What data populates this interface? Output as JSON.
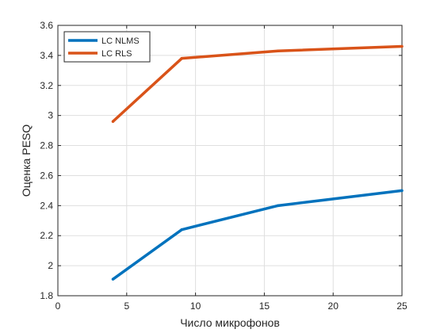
{
  "chart_data": {
    "type": "line",
    "xlabel": "Число микрофонов",
    "ylabel": "Оценка PESQ",
    "xlim": [
      0,
      25
    ],
    "ylim": [
      1.8,
      3.6
    ],
    "xticks": [
      0,
      5,
      10,
      15,
      20,
      25
    ],
    "yticks": [
      1.8,
      2,
      2.2,
      2.4,
      2.6,
      2.8,
      3,
      3.2,
      3.4,
      3.6
    ],
    "xtick_labels": [
      "0",
      "5",
      "10",
      "15",
      "20",
      "25"
    ],
    "ytick_labels": [
      "1.8",
      "2",
      "2.2",
      "2.4",
      "2.6",
      "2.8",
      "3",
      "3.2",
      "3.4",
      "3.6"
    ],
    "grid": true,
    "legend_position": "top-left",
    "series": [
      {
        "name": "LC NLMS",
        "color": "#0072BD",
        "x": [
          4,
          9,
          16,
          25
        ],
        "y": [
          1.91,
          2.24,
          2.4,
          2.5
        ]
      },
      {
        "name": "LC RLS",
        "color": "#D95319",
        "x": [
          4,
          9,
          16,
          25
        ],
        "y": [
          2.96,
          3.38,
          3.43,
          3.46
        ]
      }
    ]
  }
}
